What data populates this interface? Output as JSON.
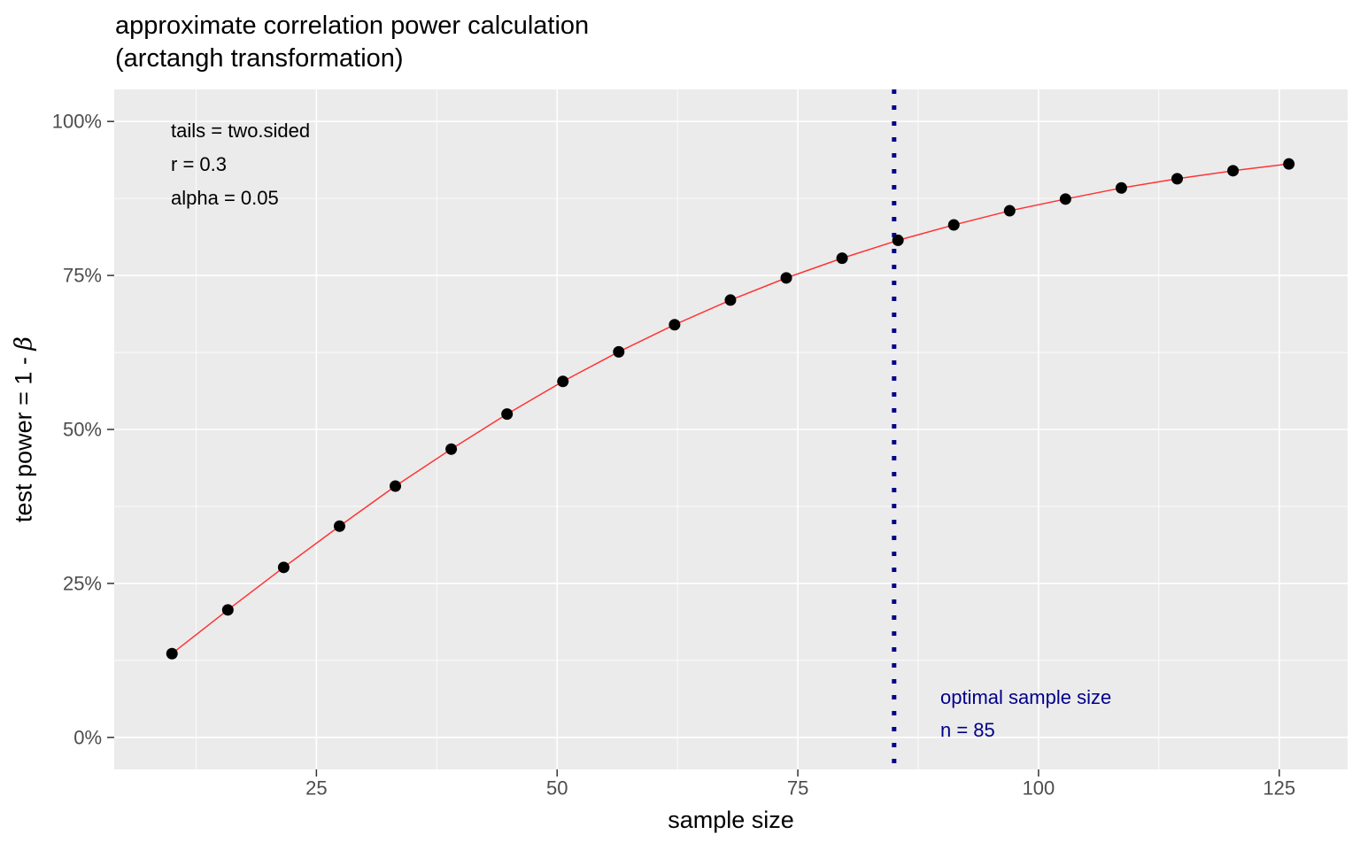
{
  "title": {
    "line1": "approximate correlation power calculation",
    "line2": "(arctangh transformation)"
  },
  "chart_data": {
    "type": "line",
    "title": "approximate correlation power calculation (arctangh transformation)",
    "xlabel": "sample size",
    "ylabel": "test power = 1 - β",
    "ylabel_prefix": "test power = 1 - ",
    "ylabel_symbol": "β",
    "x": [
      10,
      15.8,
      21.6,
      27.4,
      33.2,
      39,
      44.8,
      50.6,
      56.4,
      62.2,
      68,
      73.8,
      79.6,
      85.4,
      91.2,
      97,
      102.8,
      108.6,
      114.4,
      120.2,
      126
    ],
    "series": [
      {
        "name": "test power (%)",
        "values": [
          13.6,
          20.7,
          27.6,
          34.3,
          40.8,
          46.8,
          52.5,
          57.8,
          62.6,
          67.0,
          71.0,
          74.6,
          77.8,
          80.7,
          83.2,
          85.5,
          87.4,
          89.2,
          90.7,
          92.0,
          93.1
        ]
      }
    ],
    "xlim": [
      4.0,
      132.1
    ],
    "ylim": [
      -5.2,
      105.2
    ],
    "x_ticks": [
      25,
      50,
      75,
      100,
      125
    ],
    "x_tick_labels": [
      "25",
      "50",
      "75",
      "100",
      "125"
    ],
    "x_minor_ticks": [
      12.5,
      37.5,
      62.5,
      87.5,
      112.5
    ],
    "y_ticks": [
      0,
      25,
      50,
      75,
      100
    ],
    "y_tick_labels": [
      "0%",
      "25%",
      "50%",
      "75%",
      "100%"
    ],
    "y_minor_ticks": [
      12.5,
      37.5,
      62.5,
      87.5
    ],
    "grid": "major-and-minor, white on gray panel",
    "legend": "none",
    "annotations": {
      "params": [
        "tails = two.sided",
        "r = 0.3",
        "alpha = 0.05"
      ],
      "optimal": [
        "optimal sample size",
        "n = 85"
      ],
      "vline_x": 85
    },
    "colors": {
      "curve": "#ff3333",
      "points": "#000000",
      "vline": "#00008B",
      "optimal_text": "#00008B",
      "panel_bg": "#EBEBEB",
      "grid": "#FFFFFF",
      "axis_text": "#4D4D4D",
      "tick_mark": "#333333",
      "title_text": "#000000"
    }
  }
}
